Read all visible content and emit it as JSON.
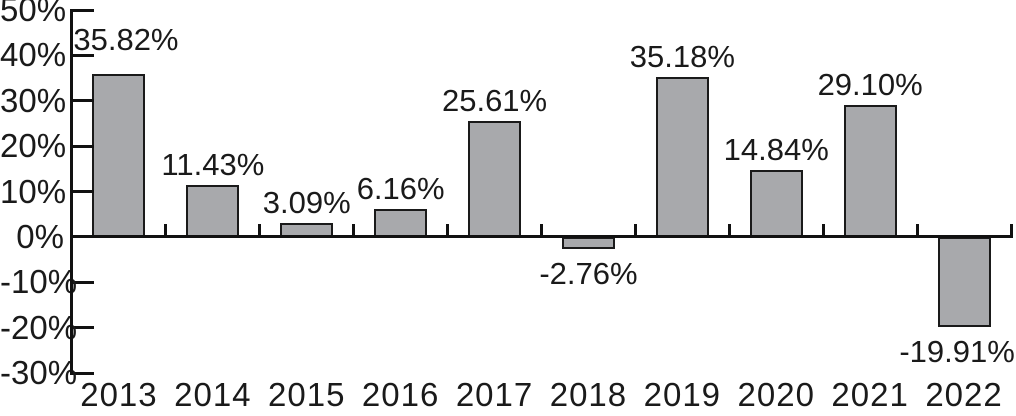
{
  "chart_data": {
    "type": "bar",
    "title": "",
    "xlabel": "",
    "ylabel": "",
    "categories": [
      "2013",
      "2014",
      "2015",
      "2016",
      "2017",
      "2018",
      "2019",
      "2020",
      "2021",
      "2022"
    ],
    "values": [
      35.82,
      11.43,
      3.09,
      6.16,
      25.61,
      -2.76,
      35.18,
      14.84,
      29.1,
      -19.91
    ],
    "value_labels": [
      "35.82%",
      "11.43%",
      "3.09%",
      "6.16%",
      "25.61%",
      "-2.76%",
      "35.18%",
      "14.84%",
      "29.10%",
      "-19.91%"
    ],
    "ylim": [
      -30,
      50
    ],
    "ytick_step": 10,
    "ytick_labels": [
      "50%",
      "40%",
      "30%",
      "20%",
      "10%",
      "0%",
      "-10%",
      "-20%",
      "-30%"
    ],
    "grid": false,
    "legend": null,
    "bar_color": "#a8a9ac",
    "bar_border_color": "#1a1a1a",
    "axis_color": "#111111",
    "text_color": "#1a1a1a",
    "label_dx": [
      7,
      0,
      0,
      0,
      0,
      0,
      0,
      0,
      0,
      -7
    ],
    "label_dy": [
      -14,
      0,
      0,
      0,
      0,
      0,
      0,
      0,
      0,
      0
    ]
  }
}
